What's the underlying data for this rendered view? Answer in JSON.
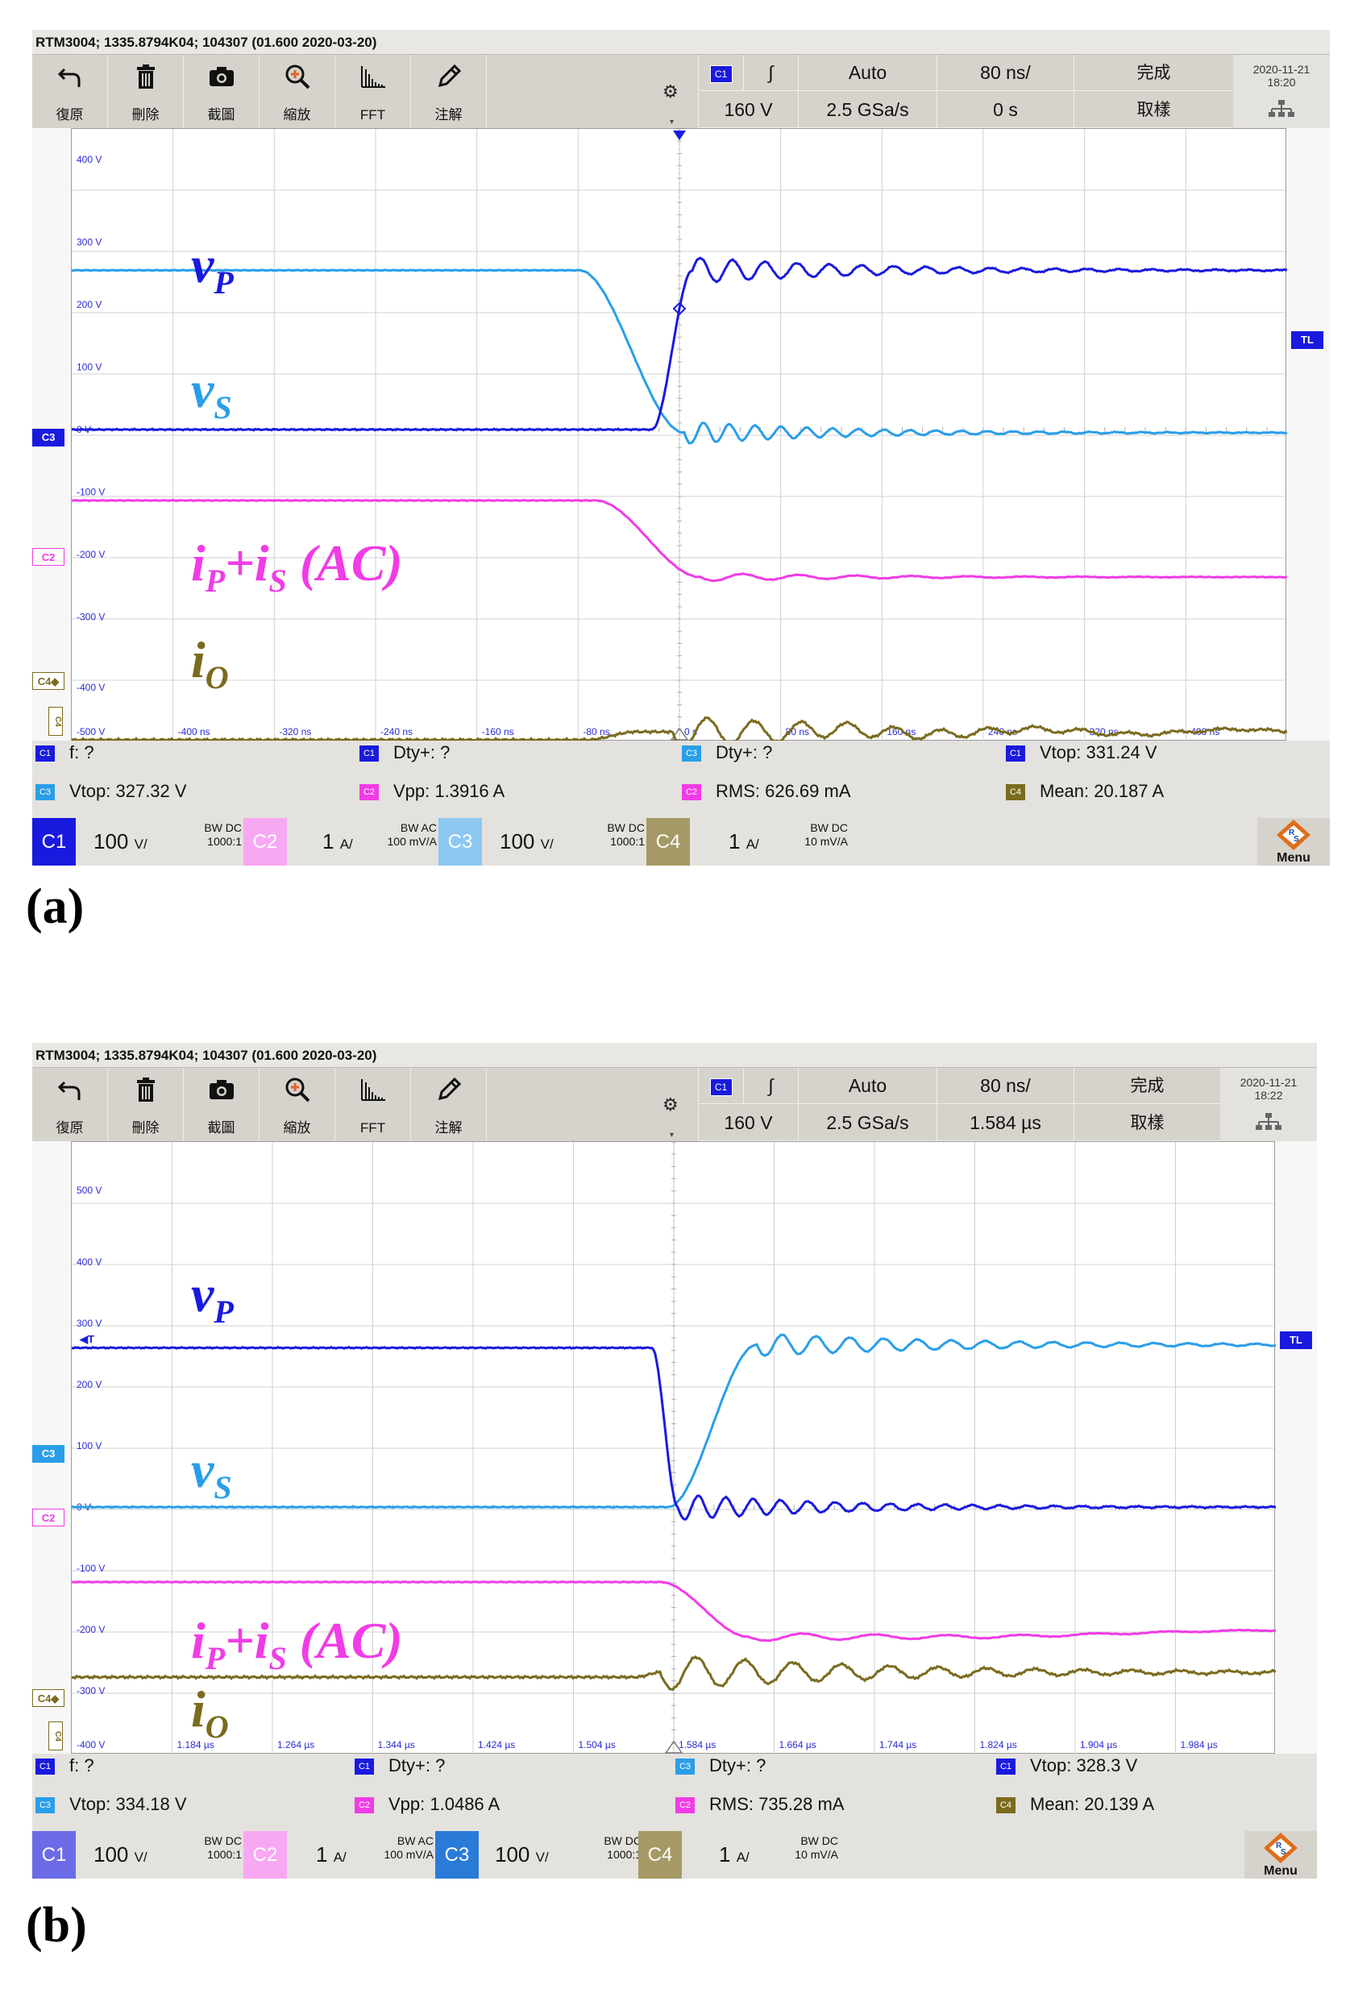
{
  "figure_a": {
    "caption": "(a)",
    "title": "RTM3004; 1335.8794K04; 104307 (01.600 2020-03-20)",
    "toolbar": [
      "復原",
      "刪除",
      "截圖",
      "縮放",
      "FFT",
      "注解"
    ],
    "header": {
      "ch": "C1",
      "edge": "∫",
      "mode": "Auto",
      "timebase": "80 ns/",
      "status": "完成",
      "vscale": "160 V",
      "rate": "2.5 GSa/s",
      "delay": "0 s",
      "acq": "取樣",
      "date": "2020-11-21",
      "time": "18:20"
    },
    "y_ticks": [
      "400 V",
      "300 V",
      "200 V",
      "100 V",
      "0 V",
      "-100 V",
      "-200 V",
      "-300 V",
      "-400 V"
    ],
    "x_ticks": [
      "-500 V",
      "-400 ns",
      "-320 ns",
      "-240 ns",
      "-160 ns",
      "-80 ns",
      "0 s",
      "80 ns",
      "160 ns",
      "240 ns",
      "320 ns",
      "400 ns"
    ],
    "markers": {
      "c3": "C3",
      "c2": "C2",
      "c4": "C4◆",
      "c4v": "C4",
      "tl": "TL"
    },
    "labels": {
      "vp": "v",
      "vp_sub": "P",
      "vs": "v",
      "vs_sub": "S",
      "ip": "i",
      "ip_sub": "P",
      "plus": "+i",
      "is_sub": "S",
      "ac": " (AC)",
      "io": "i",
      "io_sub": "O"
    },
    "measurements": [
      {
        "ch": "C1",
        "text": "f: ?"
      },
      {
        "ch": "C1",
        "text": "Dty+: ?"
      },
      {
        "ch": "C3",
        "text": "Dty+: ?"
      },
      {
        "ch": "C1",
        "text": "Vtop: 331.24 V"
      },
      {
        "ch": "C3",
        "text": "Vtop: 327.32 V"
      },
      {
        "ch": "C2",
        "text": "Vpp: 1.3916 A"
      },
      {
        "ch": "C2",
        "text": "RMS: 626.69 mA"
      },
      {
        "ch": "C4",
        "text": "Mean: 20.187 A"
      }
    ],
    "channels": [
      {
        "name": "C1",
        "scale": "100",
        "unit": "V/",
        "bw": "BW DC",
        "probe": "1000:1"
      },
      {
        "name": "C2",
        "scale": "1",
        "unit": "A/",
        "bw": "BW AC",
        "probe": "100 mV/A"
      },
      {
        "name": "C3",
        "scale": "100",
        "unit": "V/",
        "bw": "BW DC",
        "probe": "1000:1"
      },
      {
        "name": "C4",
        "scale": "1",
        "unit": "A/",
        "bw": "BW DC",
        "probe": "10 mV/A"
      }
    ],
    "menu": "Menu"
  },
  "figure_b": {
    "caption": "(b)",
    "title": "RTM3004; 1335.8794K04; 104307 (01.600 2020-03-20)",
    "toolbar": [
      "復原",
      "刪除",
      "截圖",
      "縮放",
      "FFT",
      "注解"
    ],
    "header": {
      "ch": "C1",
      "edge": "∫",
      "mode": "Auto",
      "timebase": "80 ns/",
      "status": "完成",
      "vscale": "160 V",
      "rate": "2.5 GSa/s",
      "delay": "1.584 µs",
      "acq": "取樣",
      "date": "2020-11-21",
      "time": "18:22"
    },
    "y_ticks": [
      "500 V",
      "400 V",
      "300 V",
      "200 V",
      "100 V",
      "0 V",
      "-100 V",
      "-200 V",
      "-300 V",
      "-400 V"
    ],
    "x_ticks": [
      "-400 V",
      "1.184 µs",
      "1.264 µs",
      "1.344 µs",
      "1.424 µs",
      "1.504 µs",
      "1.584 µs",
      "1.664 µs",
      "1.744 µs",
      "1.824 µs",
      "1.904 µs",
      "1.984 µs"
    ],
    "markers": {
      "c3": "C3",
      "c2": "C2",
      "c4": "C4◆",
      "c4v": "C4",
      "tl": "TL",
      "t": "◀T"
    },
    "labels": {
      "vp": "v",
      "vp_sub": "P",
      "vs": "v",
      "vs_sub": "S",
      "ip": "i",
      "ip_sub": "P",
      "plus": "+i",
      "is_sub": "S",
      "ac": " (AC)",
      "io": "i",
      "io_sub": "O"
    },
    "measurements": [
      {
        "ch": "C1",
        "text": "f: ?"
      },
      {
        "ch": "C1",
        "text": "Dty+: ?"
      },
      {
        "ch": "C3",
        "text": "Dty+: ?"
      },
      {
        "ch": "C1",
        "text": "Vtop: 328.3 V"
      },
      {
        "ch": "C3",
        "text": "Vtop: 334.18 V"
      },
      {
        "ch": "C2",
        "text": "Vpp: 1.0486 A"
      },
      {
        "ch": "C2",
        "text": "RMS: 735.28 mA"
      },
      {
        "ch": "C4",
        "text": "Mean: 20.139 A"
      }
    ],
    "channels": [
      {
        "name": "C1",
        "scale": "100",
        "unit": "V/",
        "bw": "BW DC",
        "probe": "1000:1"
      },
      {
        "name": "C2",
        "scale": "1",
        "unit": "A/",
        "bw": "BW AC",
        "probe": "100 mV/A"
      },
      {
        "name": "C3",
        "scale": "100",
        "unit": "V/",
        "bw": "BW DC",
        "probe": "1000:1"
      },
      {
        "name": "C4",
        "scale": "1",
        "unit": "A/",
        "bw": "BW DC",
        "probe": "10 mV/A"
      }
    ],
    "menu": "Menu"
  },
  "colors": {
    "c1": "#1a1adf",
    "c2": "#f03ce6",
    "c3": "#2a9ee8",
    "c4": "#7a6b1e"
  }
}
